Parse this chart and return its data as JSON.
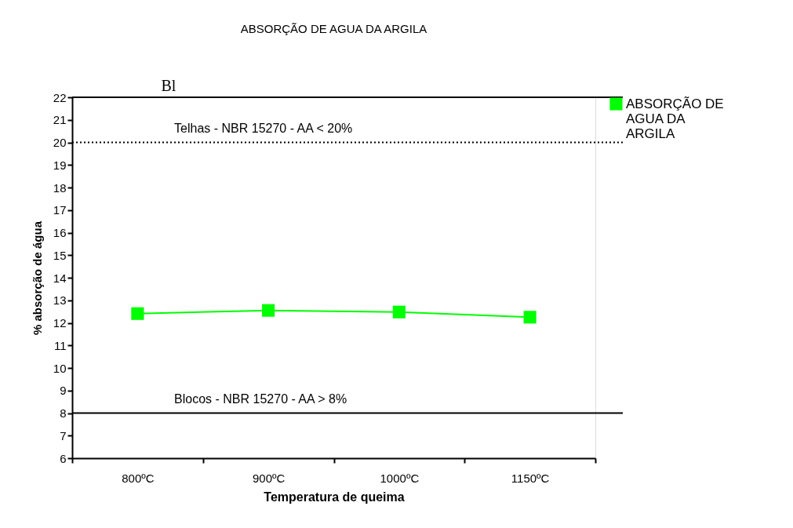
{
  "chart_data": {
    "type": "line",
    "title": "ABSORÇÃO DE AGUA  DA ARGILA",
    "xlabel": "Temperatura de queima",
    "ylabel": "% absorção de água",
    "categories": [
      "800ºC",
      "900ºC",
      "1000ºC",
      "1150ºC"
    ],
    "series": [
      {
        "name": "ABSORÇÃO DE AGUA DA ARGILA",
        "color": "#00ff00",
        "values": [
          12.41,
          12.55,
          12.48,
          12.25
        ]
      }
    ],
    "ylim": [
      6,
      22
    ],
    "yticks": [
      6,
      7,
      8,
      9,
      10,
      11,
      12,
      13,
      14,
      15,
      16,
      17,
      18,
      19,
      20,
      21,
      22
    ],
    "ref_lines": [
      {
        "axis": "y",
        "value": 20,
        "label": "Telhas - NBR 15270 - AA < 20%",
        "line_style": "dotted",
        "color": "#000000"
      },
      {
        "axis": "y",
        "value": 8,
        "label": "Blocos - NBR 15270 - AA > 8%",
        "line_style": "solid",
        "color": "#000000"
      },
      {
        "axis": "y",
        "value": 22,
        "label": null,
        "line_style": "solid",
        "color": "#000000"
      }
    ],
    "annotations": [
      "Bl"
    ],
    "marker": "square",
    "line_style": "solid",
    "grid": false,
    "legend": "right"
  }
}
